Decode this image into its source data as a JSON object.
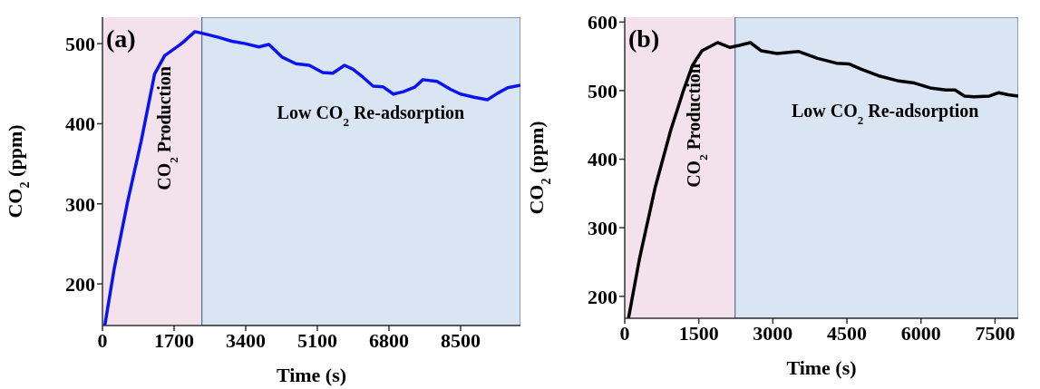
{
  "chart_data": [
    {
      "type": "line",
      "xlabel": "Time (s)",
      "ylabel": "CO$_{2}$ (ppm)",
      "xlim": [
        0,
        9920
      ],
      "ylim": [
        148,
        533
      ],
      "xticks": [
        0,
        1700,
        3400,
        5100,
        6800,
        8500
      ],
      "yticks": [
        200,
        300,
        400,
        500
      ],
      "marker": "none",
      "line_style": "solid",
      "annotations": [
        "(a)"
      ],
      "bands": [
        {
          "axis": "x",
          "from": 0,
          "to": 2360,
          "label": "CO$_{2}$ Production",
          "color": "#f3e1ec"
        },
        {
          "axis": "x",
          "from": 2360,
          "to": 9920,
          "label": "Low CO$_{2}$ Re-adsorption",
          "color": "#dae5f3"
        }
      ],
      "series": [
        {
          "color": "#0a14f0",
          "x": [
            56,
            279,
            599,
            918,
            1237,
            1476,
            1875,
            2195,
            2362,
            2753,
            3072,
            3391,
            3711,
            3950,
            4269,
            4589,
            4908,
            5227,
            5466,
            5746,
            5945,
            6185,
            6424,
            6663,
            6903,
            7142,
            7421,
            7605,
            7940,
            8259,
            8499,
            8818,
            9137,
            9376,
            9616,
            9919
          ],
          "values": [
            148,
            219,
            303,
            378,
            462,
            485,
            500,
            515,
            513,
            508,
            503,
            500,
            496,
            499,
            483,
            475,
            473,
            464,
            463,
            473,
            468,
            458,
            447,
            446,
            437,
            440,
            446,
            455,
            453,
            443,
            437,
            433,
            430,
            438,
            445,
            448
          ]
        }
      ]
    },
    {
      "type": "line",
      "xlabel": "Time (s)",
      "ylabel": "CO$_{2}$ (ppm)",
      "xlim": [
        0,
        7970
      ],
      "ylim": [
        168,
        607
      ],
      "xticks": [
        0,
        1500,
        3000,
        4500,
        6000,
        7500
      ],
      "yticks": [
        200,
        300,
        400,
        500,
        600
      ],
      "marker": "none",
      "line_style": "solid",
      "annotations": [
        "(b)"
      ],
      "bands": [
        {
          "axis": "x",
          "from": 0,
          "to": 2235,
          "label": "CO$_{2}$ Production",
          "color": "#f3e1ec"
        },
        {
          "axis": "x",
          "from": 2235,
          "to": 7970,
          "label": "Low CO$_{2}$ Re-adsorption",
          "color": "#dae5f3"
        }
      ],
      "series": [
        {
          "color": "#000000",
          "x": [
            76,
            297,
            614,
            931,
            1184,
            1374,
            1564,
            1880,
            2133,
            2323,
            2545,
            2766,
            3083,
            3526,
            3906,
            4285,
            4538,
            4792,
            5172,
            5551,
            5868,
            6184,
            6501,
            6691,
            6881,
            7071,
            7387,
            7577,
            7767,
            7970
          ],
          "values": [
            168,
            254,
            358,
            442,
            499,
            537,
            558,
            570,
            563,
            566,
            570,
            558,
            554,
            557,
            547,
            540,
            539,
            531,
            521,
            514,
            511,
            504,
            501,
            501,
            492,
            491,
            492,
            497,
            494,
            492
          ]
        }
      ]
    }
  ]
}
